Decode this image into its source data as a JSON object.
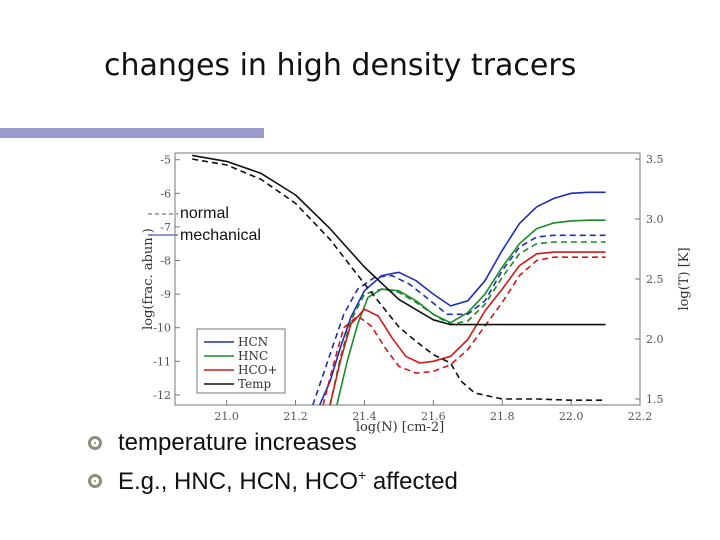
{
  "slide": {
    "title": "changes in high density tracers",
    "bullets": [
      {
        "text": "temperature increases"
      },
      {
        "pre": "E.g., HNC, HCN, HCO",
        "sup": "+",
        "post": " affected"
      }
    ]
  },
  "colors": {
    "HCN": "#1f2fb0",
    "HNC": "#1a8a2a",
    "HCO+": "#d01818",
    "Temp": "#111111",
    "accent_bar": "#9a9acc",
    "bullet": "#8d8d7c"
  },
  "chart_data": {
    "type": "line",
    "xlabel": "log(N) [cm-2]",
    "ylabel": "log(frac. abun.)",
    "y2label": "log(T) [K]",
    "xlim": [
      20.85,
      22.2
    ],
    "ylim": [
      -12.3,
      -4.8
    ],
    "y2lim": [
      1.45,
      3.55
    ],
    "xticks": [
      "21.0",
      "21.2",
      "21.4",
      "21.6",
      "21.8",
      "22.0",
      "22.2"
    ],
    "yticks": [
      "-5",
      "-6",
      "-7",
      "-8",
      "-9",
      "-10",
      "-11",
      "-12"
    ],
    "y2ticks": [
      "1.5",
      "2.0",
      "2.5",
      "3.0",
      "3.5"
    ],
    "linestyle_legend": [
      {
        "label": "normal",
        "style": "dashed"
      },
      {
        "label": "mechanical",
        "style": "solid"
      }
    ],
    "species_legend": [
      "HCN",
      "HNC",
      "HCO+",
      "Temp"
    ],
    "series": [
      {
        "name": "HCN",
        "axis": "left",
        "style": "solid",
        "x": [
          21.27,
          21.3,
          21.33,
          21.36,
          21.4,
          21.45,
          21.5,
          21.55,
          21.6,
          21.65,
          21.7,
          21.75,
          21.8,
          21.85,
          21.9,
          21.95,
          22.0,
          22.05,
          22.1
        ],
        "y": [
          -12.3,
          -11.6,
          -10.6,
          -9.7,
          -8.9,
          -8.45,
          -8.35,
          -8.6,
          -9.0,
          -9.35,
          -9.2,
          -8.6,
          -7.7,
          -6.9,
          -6.4,
          -6.15,
          -6.0,
          -5.97,
          -5.97
        ]
      },
      {
        "name": "HCN",
        "axis": "left",
        "style": "dashed",
        "x": [
          21.25,
          21.28,
          21.31,
          21.34,
          21.38,
          21.43,
          21.48,
          21.53,
          21.58,
          21.64,
          21.7,
          21.75,
          21.8,
          21.85,
          21.9,
          21.95,
          22.0,
          22.05,
          22.1
        ],
        "y": [
          -12.3,
          -11.4,
          -10.5,
          -9.6,
          -8.85,
          -8.5,
          -8.45,
          -8.7,
          -9.1,
          -9.6,
          -9.6,
          -9.2,
          -8.3,
          -7.6,
          -7.3,
          -7.25,
          -7.25,
          -7.25,
          -7.25
        ]
      },
      {
        "name": "HNC",
        "axis": "left",
        "style": "solid",
        "x": [
          21.32,
          21.35,
          21.38,
          21.41,
          21.45,
          21.5,
          21.55,
          21.6,
          21.65,
          21.7,
          21.75,
          21.8,
          21.85,
          21.9,
          21.95,
          22.0,
          22.05,
          22.1
        ],
        "y": [
          -12.3,
          -11.0,
          -9.9,
          -9.1,
          -8.85,
          -8.9,
          -9.2,
          -9.6,
          -9.85,
          -9.55,
          -9.0,
          -8.2,
          -7.5,
          -7.05,
          -6.88,
          -6.82,
          -6.8,
          -6.8
        ]
      },
      {
        "name": "HNC",
        "axis": "left",
        "style": "dashed",
        "x": [
          21.3,
          21.33,
          21.36,
          21.4,
          21.45,
          21.5,
          21.55,
          21.6,
          21.65,
          21.7,
          21.75,
          21.8,
          21.85,
          21.9,
          21.95,
          22.0,
          22.05,
          22.1
        ],
        "y": [
          -12.3,
          -10.9,
          -9.8,
          -9.0,
          -8.85,
          -8.95,
          -9.25,
          -9.6,
          -9.9,
          -9.8,
          -9.3,
          -8.5,
          -7.8,
          -7.5,
          -7.45,
          -7.45,
          -7.45,
          -7.45
        ]
      },
      {
        "name": "HCO+",
        "axis": "left",
        "style": "solid",
        "x": [
          21.3,
          21.33,
          21.36,
          21.4,
          21.44,
          21.48,
          21.52,
          21.56,
          21.6,
          21.65,
          21.7,
          21.75,
          21.8,
          21.85,
          21.9,
          21.95,
          22.0,
          22.05,
          22.1
        ],
        "y": [
          -12.3,
          -11.0,
          -9.9,
          -9.45,
          -9.65,
          -10.3,
          -10.85,
          -11.05,
          -11.0,
          -10.85,
          -10.35,
          -9.5,
          -8.85,
          -8.15,
          -7.8,
          -7.75,
          -7.75,
          -7.75,
          -7.75
        ]
      },
      {
        "name": "HCO+",
        "axis": "left",
        "style": "dashed",
        "x": [
          21.28,
          21.31,
          21.34,
          21.38,
          21.42,
          21.46,
          21.5,
          21.55,
          21.6,
          21.65,
          21.7,
          21.75,
          21.8,
          21.85,
          21.9,
          21.95,
          22.0,
          22.05,
          22.1
        ],
        "y": [
          -12.3,
          -11.1,
          -10.0,
          -9.65,
          -9.95,
          -10.6,
          -11.15,
          -11.35,
          -11.3,
          -11.1,
          -10.65,
          -9.95,
          -9.25,
          -8.45,
          -8.0,
          -7.9,
          -7.9,
          -7.9,
          -7.9
        ]
      },
      {
        "name": "Temp",
        "axis": "right",
        "style": "solid",
        "x": [
          20.9,
          21.0,
          21.1,
          21.2,
          21.3,
          21.4,
          21.5,
          21.6,
          21.65,
          21.7,
          21.8,
          21.9,
          22.0,
          22.1
        ],
        "y": [
          3.53,
          3.48,
          3.38,
          3.2,
          2.92,
          2.6,
          2.33,
          2.16,
          2.12,
          2.12,
          2.12,
          2.12,
          2.12,
          2.12
        ]
      },
      {
        "name": "Temp",
        "axis": "right",
        "style": "dashed",
        "x": [
          20.9,
          21.0,
          21.1,
          21.2,
          21.3,
          21.4,
          21.5,
          21.55,
          21.6,
          21.65,
          21.68,
          21.72,
          21.8,
          21.9,
          22.0,
          22.1
        ],
        "y": [
          3.5,
          3.45,
          3.33,
          3.13,
          2.83,
          2.46,
          2.1,
          1.98,
          1.87,
          1.8,
          1.65,
          1.55,
          1.5,
          1.5,
          1.49,
          1.49
        ]
      }
    ]
  }
}
